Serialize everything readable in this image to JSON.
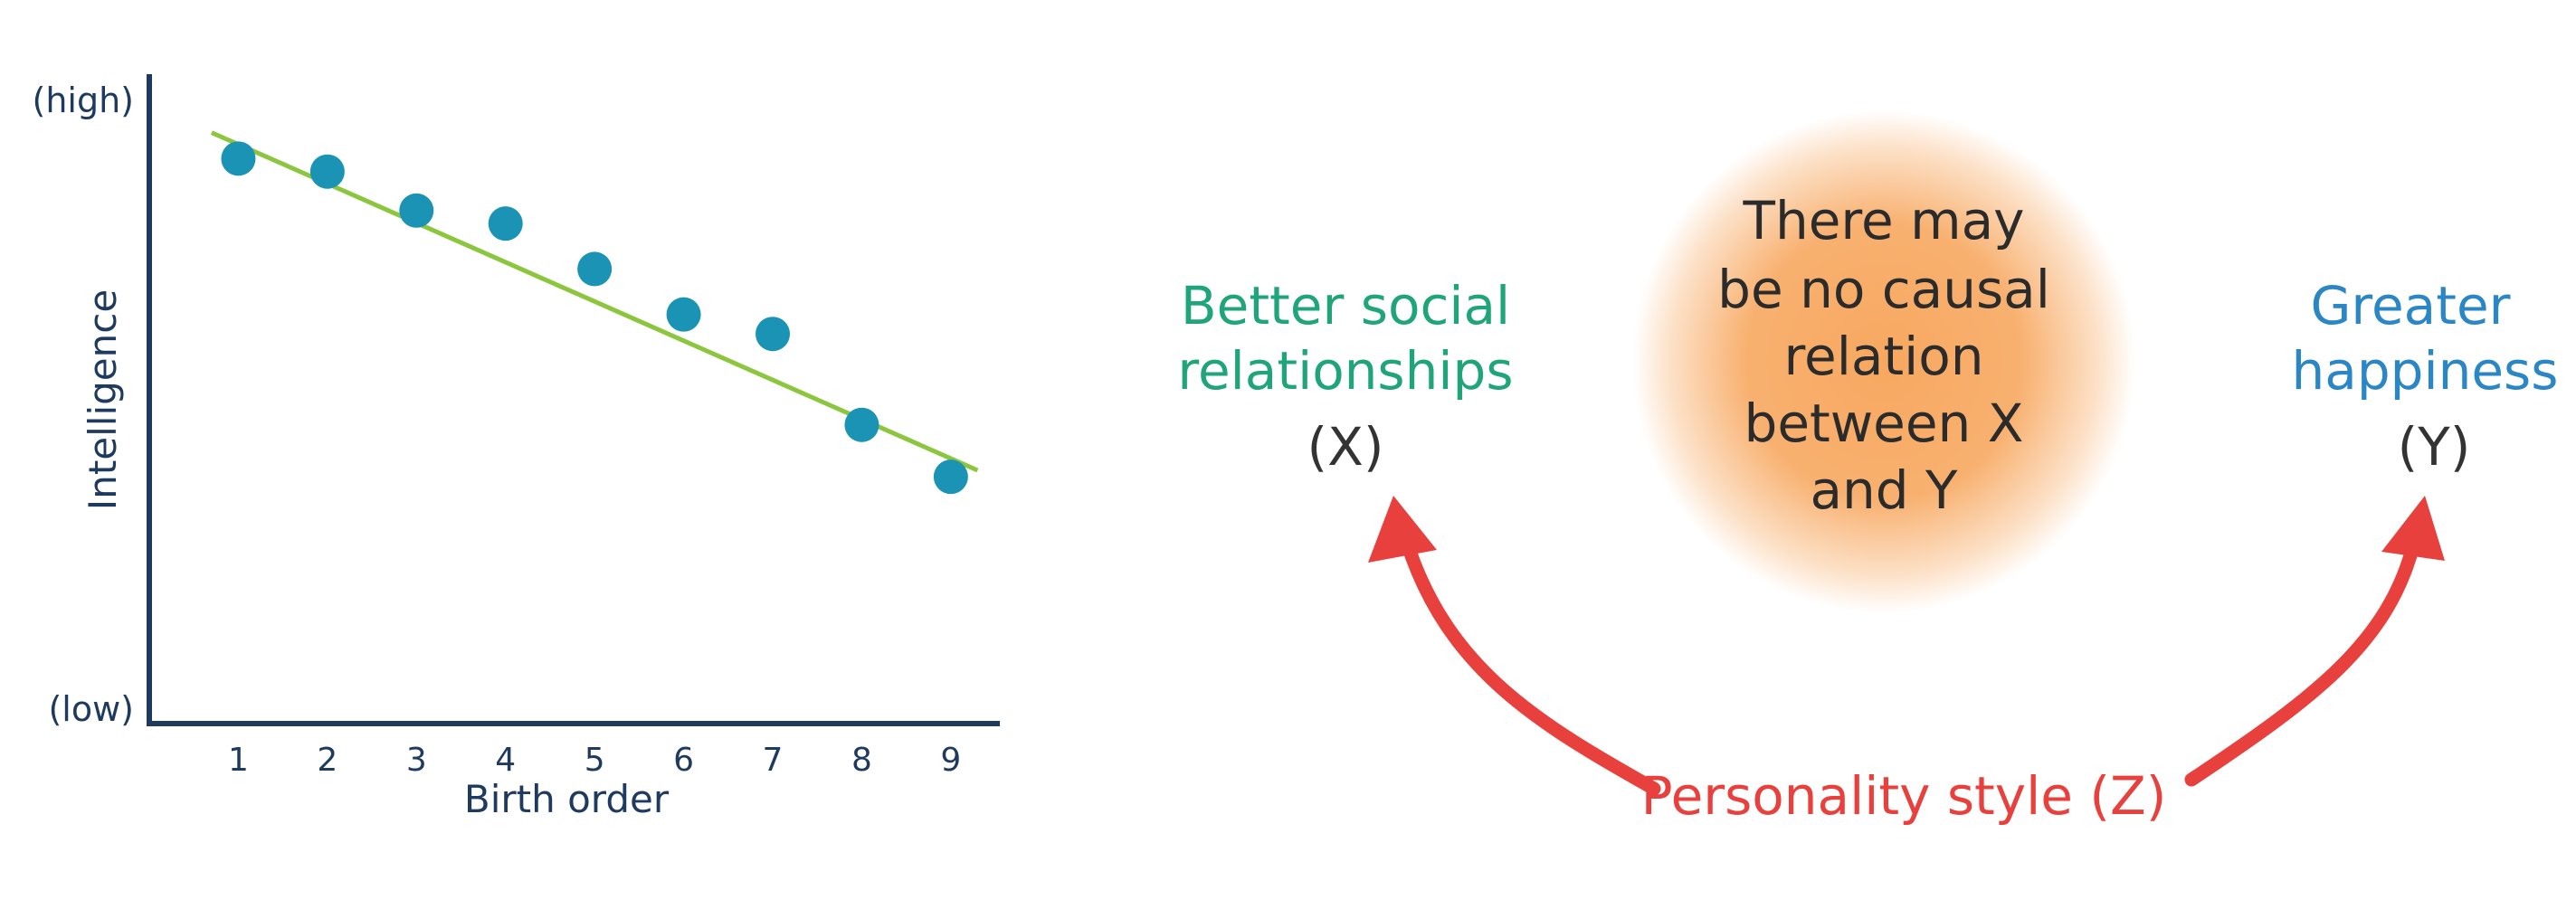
{
  "chart_data": {
    "type": "scatter",
    "x": [
      1,
      2,
      3,
      4,
      5,
      6,
      7,
      8,
      9
    ],
    "y": [
      8.7,
      8.5,
      7.9,
      7.7,
      7.0,
      6.3,
      6.0,
      4.6,
      3.8
    ],
    "trendline": {
      "x": [
        0.7,
        9.3
      ],
      "y": [
        9.1,
        3.9
      ]
    },
    "xlabel": "Birth order",
    "ylabel": "Intelligence",
    "y_top_label": "(high)",
    "y_bottom_label": "(low)",
    "x_ticks": [
      "1",
      "2",
      "3",
      "4",
      "5",
      "6",
      "7",
      "8",
      "9"
    ],
    "xlim": [
      0,
      9.55
    ],
    "ylim": [
      0,
      10
    ],
    "grid": false,
    "colors": {
      "points": "#1a93b5",
      "trendline": "#8cc63f",
      "axis": "#1e3a5f",
      "text": "#1e3a5f"
    }
  },
  "diagram": {
    "node_x": {
      "lines": [
        "Better social",
        "relationships"
      ],
      "tag": "(X)",
      "color": "#1fa579"
    },
    "node_y": {
      "lines": [
        "Greater",
        "happiness"
      ],
      "tag": "(Y)",
      "color": "#2b86c5"
    },
    "node_z": {
      "label": "Personality style (Z)",
      "color": "#e8403c"
    },
    "center_note": {
      "lines": [
        "There may",
        "be no causal",
        "relation",
        "between X",
        "and Y"
      ],
      "glow_color": "#f7a860"
    },
    "tag_color": "#333333"
  }
}
